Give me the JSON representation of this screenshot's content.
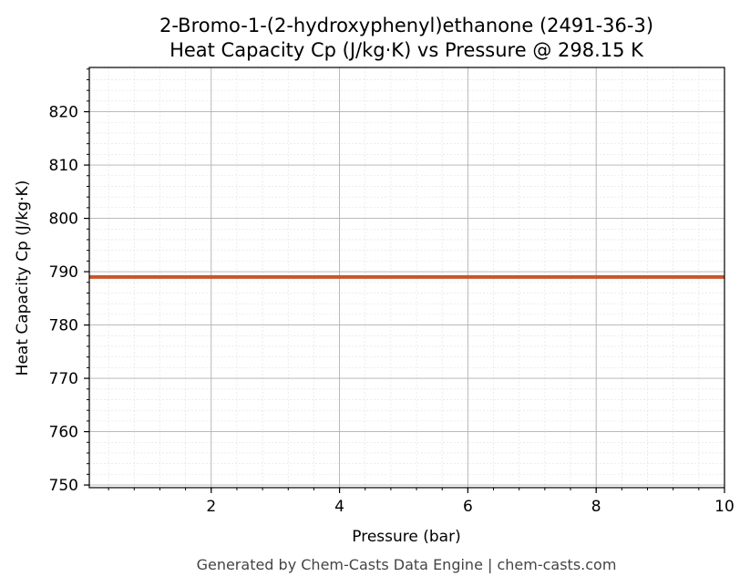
{
  "chart_data": {
    "type": "line",
    "title": "2-Bromo-1-(2-hydroxyphenyl)ethanone (2491-36-3)",
    "subtitle": "Heat Capacity Cp (J/kg·K) vs Pressure @ 298.15 K",
    "xlabel": "Pressure (bar)",
    "ylabel": "Heat Capacity Cp (J/kg·K)",
    "xlim": [
      0.1,
      10
    ],
    "ylim": [
      749.5,
      828.3
    ],
    "x_ticks": [
      2,
      4,
      6,
      8,
      10
    ],
    "y_ticks": [
      750,
      760,
      770,
      780,
      790,
      800,
      810,
      820
    ],
    "x_minor_step": 0.4,
    "y_minor_step": 2,
    "grid": true,
    "series": [
      {
        "x": [
          0.1,
          10
        ],
        "y": [
          789.0,
          789.0
        ],
        "color": "#c8552b"
      }
    ],
    "footer": "Generated by Chem-Casts Data Engine | chem-casts.com"
  },
  "colors": {
    "line": "#c8552b",
    "major_grid": "#b0b0b0",
    "minor_grid": "#e0e0e0",
    "footer_text": "#444444"
  }
}
